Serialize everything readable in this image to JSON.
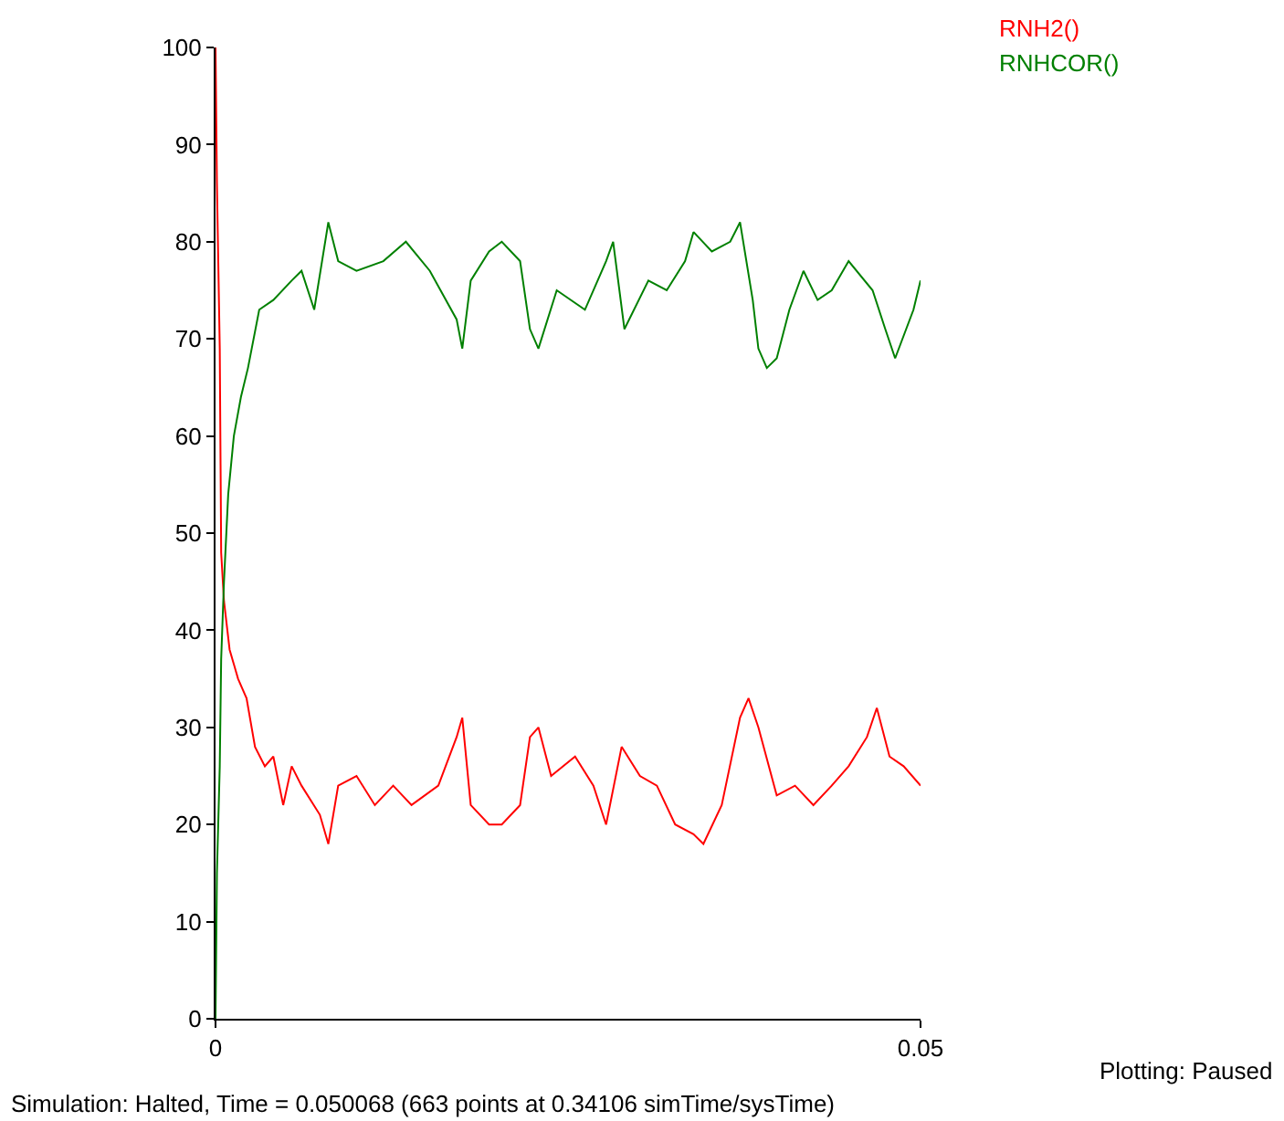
{
  "chart_data": {
    "type": "line",
    "xlim": [
      0,
      0.05
    ],
    "xticks": [
      0,
      0.05
    ],
    "ylim": [
      0,
      100
    ],
    "yticks": [
      0,
      10,
      20,
      30,
      40,
      50,
      60,
      70,
      80,
      90,
      100
    ],
    "marker": "none",
    "line_style": "solid",
    "series": [
      {
        "name": "RNH2()",
        "color": "#ff0000",
        "x": [
          0,
          0.0001,
          0.0003,
          0.0004,
          0.0006,
          0.001,
          0.0016,
          0.0022,
          0.0028,
          0.0035,
          0.0041,
          0.0048,
          0.0054,
          0.0061,
          0.0074,
          0.008,
          0.0087,
          0.01,
          0.0113,
          0.0126,
          0.0139,
          0.0158,
          0.0171,
          0.0175,
          0.0181,
          0.0194,
          0.0203,
          0.0216,
          0.0223,
          0.0229,
          0.0238,
          0.0255,
          0.0268,
          0.0277,
          0.0288,
          0.0301,
          0.0313,
          0.0326,
          0.0339,
          0.0346,
          0.0359,
          0.0372,
          0.0378,
          0.0385,
          0.0398,
          0.0411,
          0.0424,
          0.0437,
          0.0449,
          0.0462,
          0.0469,
          0.0478,
          0.0488,
          0.05
        ],
        "values": [
          100,
          86,
          69,
          48,
          43,
          38,
          35,
          33,
          28,
          26,
          27,
          22,
          26,
          24,
          21,
          18,
          24,
          25,
          22,
          24,
          22,
          24,
          29,
          31,
          22,
          20,
          20,
          22,
          29,
          30,
          25,
          27,
          24,
          20,
          28,
          25,
          24,
          20,
          19,
          18,
          22,
          31,
          33,
          30,
          23,
          24,
          22,
          24,
          26,
          29,
          32,
          27,
          26,
          24
        ]
      },
      {
        "name": "RNHCOR()",
        "color": "#008000",
        "x": [
          0,
          0.0001,
          0.0003,
          0.0004,
          0.0006,
          0.0009,
          0.0013,
          0.0018,
          0.0023,
          0.0031,
          0.0041,
          0.0054,
          0.0061,
          0.007,
          0.008,
          0.0087,
          0.01,
          0.0119,
          0.0135,
          0.0152,
          0.0171,
          0.0175,
          0.0181,
          0.0194,
          0.0203,
          0.0216,
          0.0223,
          0.0229,
          0.0242,
          0.0262,
          0.0277,
          0.0282,
          0.029,
          0.0307,
          0.032,
          0.0333,
          0.0339,
          0.0352,
          0.0365,
          0.0372,
          0.0381,
          0.0385,
          0.0391,
          0.0398,
          0.0407,
          0.0417,
          0.0427,
          0.0437,
          0.0449,
          0.0466,
          0.0475,
          0.0482,
          0.0495,
          0.05
        ],
        "values": [
          0,
          15,
          26,
          37,
          45,
          54,
          60,
          64,
          67,
          73,
          74,
          76,
          77,
          73,
          82,
          78,
          77,
          78,
          80,
          77,
          72,
          69,
          76,
          79,
          80,
          78,
          71,
          69,
          75,
          73,
          78,
          80,
          71,
          76,
          75,
          78,
          81,
          79,
          80,
          82,
          74,
          69,
          67,
          68,
          73,
          77,
          74,
          75,
          78,
          75,
          71,
          68,
          73,
          76
        ]
      }
    ],
    "annotations": [
      "Plotting: Paused",
      "Simulation: Halted, Time = 0.050068 (663 points at 0.34106 simTime/sysTime)"
    ]
  }
}
